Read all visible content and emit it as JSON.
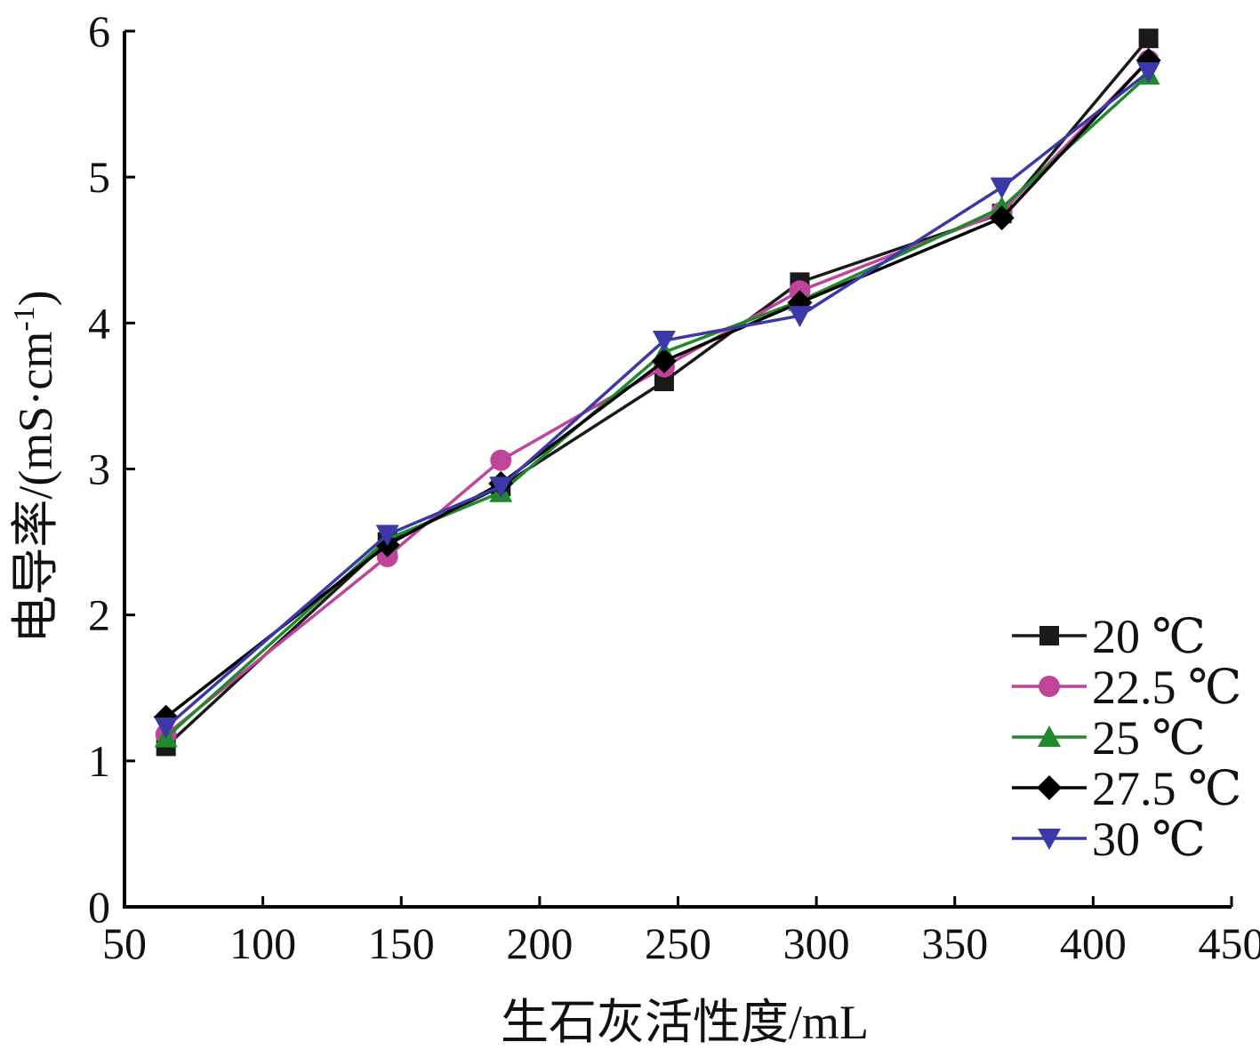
{
  "chart_data": {
    "type": "line",
    "title": "",
    "xlabel": "生石灰活性度/mL",
    "ylabel_main": "电导率/(mS·cm",
    "ylabel_sup": "-1",
    "ylabel_close": ")",
    "xlim": [
      50,
      450
    ],
    "ylim": [
      0,
      6
    ],
    "x_ticks": [
      50,
      100,
      150,
      200,
      250,
      300,
      350,
      400,
      450
    ],
    "y_ticks": [
      0,
      1,
      2,
      3,
      4,
      5,
      6
    ],
    "grid": false,
    "legend_position": "bottom-right",
    "x": [
      65,
      145,
      186,
      245,
      294,
      367,
      420
    ],
    "series": [
      {
        "name": "20 ℃",
        "color": "#1a1a1a",
        "marker": "square",
        "values": [
          1.1,
          2.5,
          2.88,
          3.6,
          4.28,
          4.75,
          5.95
        ]
      },
      {
        "name": "22.5 ℃",
        "color": "#c0449a",
        "marker": "circle",
        "values": [
          1.18,
          2.4,
          3.06,
          3.7,
          4.22,
          4.76,
          5.8
        ]
      },
      {
        "name": "25 ℃",
        "color": "#1f8a2a",
        "marker": "triangle-up",
        "values": [
          1.16,
          2.52,
          2.84,
          3.8,
          4.15,
          4.79,
          5.7
        ]
      },
      {
        "name": "27.5 ℃",
        "color": "#000000",
        "marker": "diamond",
        "values": [
          1.3,
          2.48,
          2.9,
          3.74,
          4.14,
          4.72,
          5.8
        ]
      },
      {
        "name": "30 ℃",
        "color": "#3b39a8",
        "marker": "triangle-down",
        "values": [
          1.23,
          2.55,
          2.88,
          3.88,
          4.05,
          4.93,
          5.72
        ]
      }
    ]
  }
}
